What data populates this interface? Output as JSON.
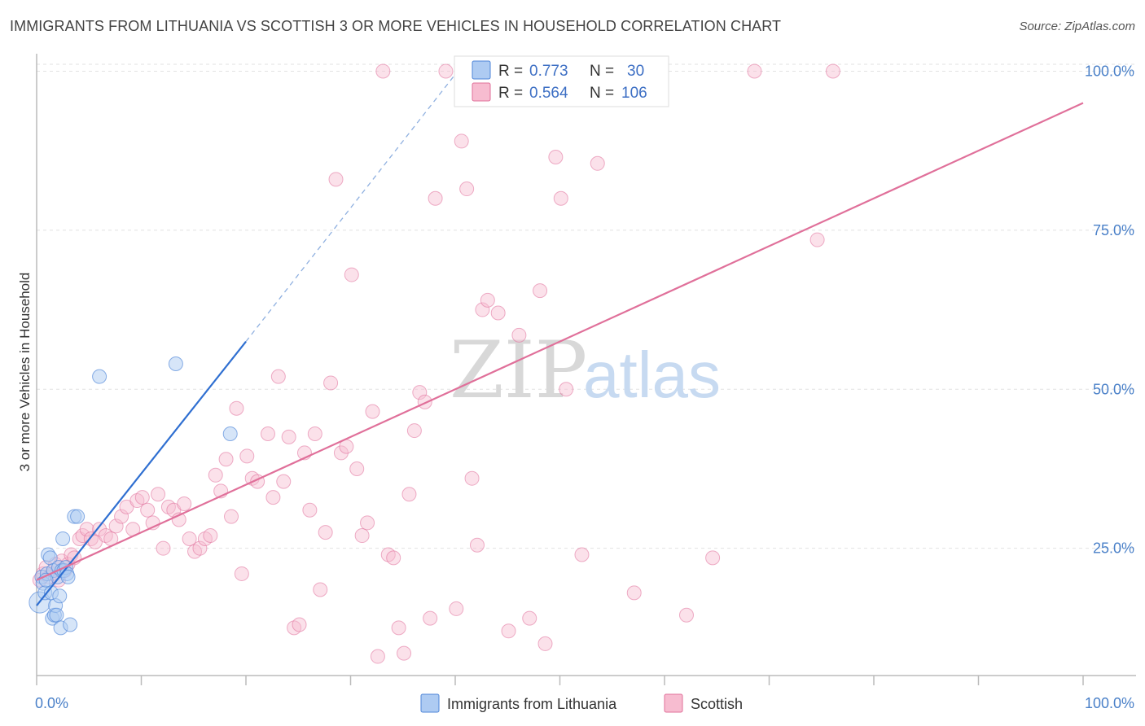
{
  "title": "IMMIGRANTS FROM LITHUANIA VS SCOTTISH 3 OR MORE VEHICLES IN HOUSEHOLD CORRELATION CHART",
  "source": "Source: ZipAtlas.com",
  "watermark": {
    "zip": "ZIP",
    "atlas": "atlas"
  },
  "legend": {
    "rows": [
      {
        "r_label": "R =",
        "r_value": "0.773",
        "n_label": "N =",
        "n_value": "30",
        "color": "#8fb6ea"
      },
      {
        "r_label": "R =",
        "r_value": "0.564",
        "n_label": "N =",
        "n_value": "106",
        "color": "#f4a7c0"
      }
    ]
  },
  "bottom_legend": [
    {
      "label": "Immigrants from Lithuania",
      "color": "#8fb6ea"
    },
    {
      "label": "Scottish",
      "color": "#f4a7c0"
    }
  ],
  "chart_data": {
    "type": "scatter",
    "ylabel": "3 or more Vehicles in Household",
    "xlabel": "",
    "xlim": [
      0,
      100
    ],
    "ylim": [
      5,
      103
    ],
    "x_ticks": [
      "0.0%",
      "100.0%"
    ],
    "y_ticks": [
      {
        "value": 25,
        "label": "25.0%"
      },
      {
        "value": 50,
        "label": "50.0%"
      },
      {
        "value": 75,
        "label": "75.0%"
      },
      {
        "value": 100,
        "label": "100.0%"
      }
    ],
    "grid": true,
    "colors": {
      "lithuania": "#4f86d8",
      "lithuania_fill": "#aecbf2",
      "scottish": "#e0709a",
      "scottish_fill": "#f7bcd0"
    },
    "series": [
      {
        "name": "Immigrants from Lithuania",
        "points": [
          [
            0.3,
            16.5
          ],
          [
            0.5,
            20.5
          ],
          [
            0.6,
            19.5
          ],
          [
            0.8,
            18.0
          ],
          [
            1.0,
            21.0
          ],
          [
            1.1,
            24.0
          ],
          [
            1.3,
            23.5
          ],
          [
            1.4,
            18.0
          ],
          [
            1.5,
            14.0
          ],
          [
            1.6,
            21.5
          ],
          [
            1.7,
            14.5
          ],
          [
            1.8,
            16.0
          ],
          [
            1.9,
            14.5
          ],
          [
            2.0,
            20.5
          ],
          [
            2.1,
            22.0
          ],
          [
            2.2,
            17.5
          ],
          [
            2.3,
            12.5
          ],
          [
            2.4,
            21.5
          ],
          [
            2.5,
            26.5
          ],
          [
            2.6,
            21.5
          ],
          [
            2.8,
            22.0
          ],
          [
            2.9,
            21.0
          ],
          [
            3.0,
            20.5
          ],
          [
            3.2,
            13.0
          ],
          [
            3.6,
            30.0
          ],
          [
            3.9,
            30.0
          ],
          [
            6.0,
            52.0
          ],
          [
            13.3,
            54.0
          ],
          [
            18.5,
            43.0
          ],
          [
            0.9,
            20.0
          ]
        ],
        "trend": {
          "from": [
            0.0,
            16.0
          ],
          "to": [
            20.0,
            57.5
          ],
          "dashed_to": [
            40.0,
            99.5
          ]
        }
      },
      {
        "name": "Scottish",
        "points": [
          [
            0.3,
            20.0
          ],
          [
            0.6,
            21.0
          ],
          [
            0.9,
            22.0
          ],
          [
            1.2,
            20.5
          ],
          [
            1.5,
            21.0
          ],
          [
            1.8,
            22.5
          ],
          [
            2.1,
            20.0
          ],
          [
            2.4,
            23.0
          ],
          [
            2.7,
            21.5
          ],
          [
            3.0,
            22.5
          ],
          [
            3.3,
            24.0
          ],
          [
            3.6,
            23.5
          ],
          [
            4.1,
            26.5
          ],
          [
            4.4,
            27.0
          ],
          [
            4.8,
            28.0
          ],
          [
            5.2,
            26.5
          ],
          [
            5.6,
            26.0
          ],
          [
            6.0,
            28.0
          ],
          [
            6.6,
            27.0
          ],
          [
            7.1,
            26.5
          ],
          [
            7.6,
            28.5
          ],
          [
            8.1,
            30.0
          ],
          [
            8.6,
            31.5
          ],
          [
            9.2,
            28.0
          ],
          [
            9.6,
            32.5
          ],
          [
            10.1,
            33.0
          ],
          [
            10.6,
            31.0
          ],
          [
            11.1,
            29.0
          ],
          [
            11.6,
            33.5
          ],
          [
            12.1,
            25.0
          ],
          [
            12.6,
            31.5
          ],
          [
            13.1,
            31.0
          ],
          [
            13.6,
            29.5
          ],
          [
            14.1,
            32.0
          ],
          [
            14.6,
            26.5
          ],
          [
            15.1,
            24.5
          ],
          [
            15.6,
            25.0
          ],
          [
            16.1,
            26.5
          ],
          [
            16.6,
            27.0
          ],
          [
            17.1,
            36.5
          ],
          [
            17.6,
            34.0
          ],
          [
            18.1,
            39.0
          ],
          [
            18.6,
            30.0
          ],
          [
            19.1,
            47.0
          ],
          [
            19.6,
            21.0
          ],
          [
            20.1,
            39.5
          ],
          [
            20.6,
            36.0
          ],
          [
            21.1,
            35.5
          ],
          [
            22.1,
            43.0
          ],
          [
            22.6,
            33.0
          ],
          [
            23.1,
            52.0
          ],
          [
            23.6,
            35.5
          ],
          [
            24.1,
            42.5
          ],
          [
            24.6,
            12.5
          ],
          [
            25.1,
            13.0
          ],
          [
            25.6,
            40.0
          ],
          [
            26.1,
            31.0
          ],
          [
            26.6,
            43.0
          ],
          [
            27.1,
            18.5
          ],
          [
            27.6,
            27.5
          ],
          [
            28.1,
            51.0
          ],
          [
            28.6,
            83.0
          ],
          [
            29.1,
            40.0
          ],
          [
            29.6,
            41.0
          ],
          [
            30.1,
            68.0
          ],
          [
            30.6,
            37.5
          ],
          [
            31.1,
            27.0
          ],
          [
            31.6,
            29.0
          ],
          [
            32.1,
            46.5
          ],
          [
            32.6,
            8.0
          ],
          [
            33.1,
            100.0
          ],
          [
            33.6,
            24.0
          ],
          [
            34.1,
            23.5
          ],
          [
            34.6,
            12.5
          ],
          [
            35.1,
            8.5
          ],
          [
            35.6,
            33.5
          ],
          [
            36.1,
            43.5
          ],
          [
            36.6,
            49.5
          ],
          [
            37.1,
            48.0
          ],
          [
            37.6,
            14.0
          ],
          [
            38.1,
            80.0
          ],
          [
            39.1,
            100.0
          ],
          [
            40.1,
            15.5
          ],
          [
            40.6,
            89.0
          ],
          [
            41.1,
            81.5
          ],
          [
            41.6,
            36.0
          ],
          [
            42.1,
            25.5
          ],
          [
            42.6,
            62.5
          ],
          [
            43.1,
            64.0
          ],
          [
            44.1,
            62.0
          ],
          [
            45.1,
            12.0
          ],
          [
            46.1,
            58.5
          ],
          [
            47.1,
            14.0
          ],
          [
            48.1,
            65.5
          ],
          [
            48.6,
            10.0
          ],
          [
            49.6,
            86.5
          ],
          [
            50.1,
            80.0
          ],
          [
            50.6,
            50.0
          ],
          [
            52.1,
            24.0
          ],
          [
            53.6,
            85.5
          ],
          [
            57.1,
            18.0
          ],
          [
            62.1,
            14.5
          ],
          [
            64.6,
            23.5
          ],
          [
            68.6,
            100.0
          ],
          [
            74.6,
            73.5
          ],
          [
            76.1,
            100.0
          ]
        ],
        "trend": {
          "from": [
            0.0,
            20.0
          ],
          "to": [
            100.0,
            95.0
          ]
        }
      }
    ]
  }
}
